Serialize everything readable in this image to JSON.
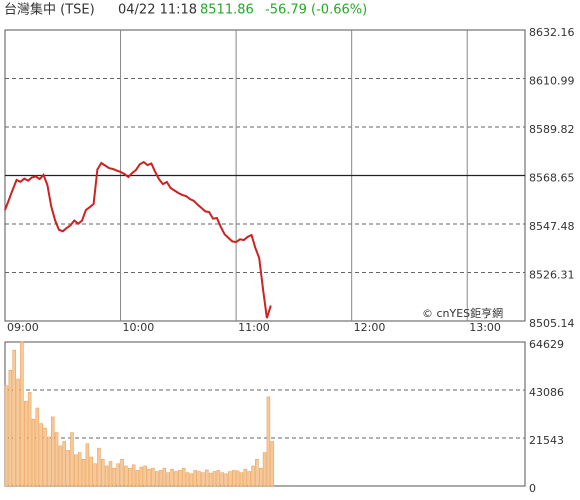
{
  "header": {
    "title": "台灣集中 (TSE)",
    "time": "04/22 11:18",
    "price": "8511.86",
    "change": "-56.79 (-0.66%)",
    "change_color": "#22aa22",
    "watermark": "© cnYES鉅亨網"
  },
  "chart_data": [
    {
      "type": "line",
      "color": "#cc2222",
      "x": [
        "09:00",
        "09:02",
        "09:04",
        "09:06",
        "09:08",
        "09:10",
        "09:12",
        "09:14",
        "09:16",
        "09:18",
        "09:20",
        "09:22",
        "09:24",
        "09:26",
        "09:28",
        "09:30",
        "09:32",
        "09:34",
        "09:36",
        "09:38",
        "09:40",
        "09:42",
        "09:44",
        "09:46",
        "09:48",
        "09:50",
        "09:52",
        "09:54",
        "09:56",
        "09:58",
        "10:00",
        "10:02",
        "10:04",
        "10:06",
        "10:08",
        "10:10",
        "10:12",
        "10:14",
        "10:16",
        "10:18",
        "10:20",
        "10:22",
        "10:24",
        "10:26",
        "10:28",
        "10:30",
        "10:32",
        "10:34",
        "10:36",
        "10:38",
        "10:40",
        "10:42",
        "10:44",
        "10:46",
        "10:48",
        "10:50",
        "10:52",
        "10:54",
        "10:56",
        "10:58",
        "11:00",
        "11:02",
        "11:04",
        "11:06",
        "11:08",
        "11:10",
        "11:12",
        "11:14",
        "11:16",
        "11:18"
      ],
      "values": [
        8553.6,
        8558.0,
        8562.5,
        8566.7,
        8565.9,
        8567.3,
        8566.4,
        8567.8,
        8568.2,
        8567.1,
        8568.9,
        8564.5,
        8555.2,
        8549.1,
        8545.0,
        8544.3,
        8545.7,
        8546.9,
        8549.0,
        8547.6,
        8548.9,
        8553.6,
        8554.8,
        8556.2,
        8571.3,
        8574.1,
        8573.0,
        8571.9,
        8571.5,
        8570.8,
        8570.2,
        8569.3,
        8568.0,
        8569.7,
        8571.1,
        8573.6,
        8574.5,
        8573.2,
        8573.9,
        8570.2,
        8567.0,
        8564.9,
        8565.8,
        8563.2,
        8562.1,
        8561.0,
        8560.2,
        8559.7,
        8558.4,
        8557.6,
        8555.9,
        8554.5,
        8553.0,
        8552.7,
        8549.8,
        8550.1,
        8546.3,
        8543.0,
        8541.4,
        8539.9,
        8539.6,
        8540.8,
        8540.5,
        8541.9,
        8542.7,
        8537.0,
        8532.6,
        8518.7,
        8506.4,
        8511.86
      ],
      "xlim": [
        "09:00",
        "13:30"
      ],
      "xticks": [
        "09:00",
        "10:00",
        "11:00",
        "12:00",
        "13:00"
      ],
      "ylim": [
        8505.14,
        8632.16
      ],
      "yticks": [
        8505.14,
        8526.31,
        8547.48,
        8568.65,
        8589.82,
        8610.99,
        8632.16
      ],
      "reference_line": 8568.65,
      "grid": true
    },
    {
      "type": "bar",
      "color": "#f7c898",
      "x": [
        "09:00",
        "09:02",
        "09:04",
        "09:06",
        "09:08",
        "09:10",
        "09:12",
        "09:14",
        "09:16",
        "09:18",
        "09:20",
        "09:22",
        "09:24",
        "09:26",
        "09:28",
        "09:30",
        "09:32",
        "09:34",
        "09:36",
        "09:38",
        "09:40",
        "09:42",
        "09:44",
        "09:46",
        "09:48",
        "09:50",
        "09:52",
        "09:54",
        "09:56",
        "09:58",
        "10:00",
        "10:02",
        "10:04",
        "10:06",
        "10:08",
        "10:10",
        "10:12",
        "10:14",
        "10:16",
        "10:18",
        "10:20",
        "10:22",
        "10:24",
        "10:26",
        "10:28",
        "10:30",
        "10:32",
        "10:34",
        "10:36",
        "10:38",
        "10:40",
        "10:42",
        "10:44",
        "10:46",
        "10:48",
        "10:50",
        "10:52",
        "10:54",
        "10:56",
        "10:58",
        "11:00",
        "11:02",
        "11:04",
        "11:06",
        "11:08",
        "11:10",
        "11:12",
        "11:14",
        "11:16",
        "11:18"
      ],
      "values": [
        45000,
        52000,
        61000,
        48000,
        64629,
        38000,
        42000,
        30000,
        35000,
        28000,
        26000,
        22000,
        31000,
        24000,
        18000,
        20000,
        16000,
        24000,
        14000,
        15000,
        12000,
        19000,
        13000,
        10000,
        17000,
        12000,
        9000,
        11000,
        8000,
        10000,
        12000,
        9000,
        8000,
        9500,
        7000,
        8500,
        9000,
        7500,
        8000,
        6500,
        7000,
        8000,
        6000,
        7500,
        6500,
        7000,
        8000,
        6000,
        5500,
        7000,
        6500,
        6000,
        7200,
        5800,
        6500,
        7000,
        6000,
        5500,
        6500,
        7000,
        6800,
        6000,
        7500,
        6500,
        9000,
        12000,
        8000,
        15000,
        40000,
        20000
      ],
      "ylim": [
        0,
        64629
      ],
      "yticks": [
        0,
        21543,
        43086,
        64629
      ],
      "grid": true
    }
  ]
}
